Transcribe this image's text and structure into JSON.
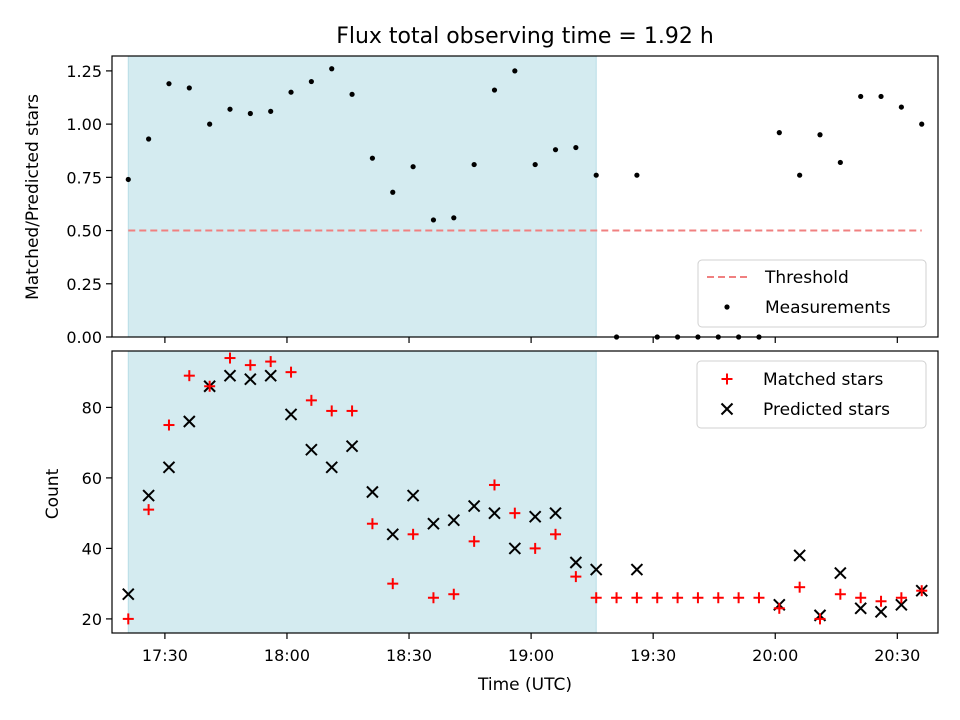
{
  "chart_data": [
    {
      "type": "scatter",
      "title": "Flux total observing time = 1.92 h",
      "ylabel": "Matched/Predicted stars",
      "xlabel": "",
      "xlim": [
        "17:17",
        "20:40"
      ],
      "ylim": [
        0,
        1.32
      ],
      "yticks": [
        "0.00",
        "0.25",
        "0.50",
        "0.75",
        "1.00",
        "1.25"
      ],
      "ytick_values": [
        0,
        0.25,
        0.5,
        0.75,
        1.0,
        1.25
      ],
      "grid": false,
      "legend_position": "lower-right",
      "shaded_interval": [
        "17:21",
        "19:16"
      ],
      "shade_color": "#d4ebf0",
      "threshold": {
        "name": "Threshold",
        "value": 0.5,
        "x_range": [
          "17:21",
          "20:36"
        ],
        "color": "#f08080",
        "style": "dashed"
      },
      "series": [
        {
          "name": "Measurements",
          "marker": "dot",
          "color": "#000000",
          "points": [
            [
              "17:21",
              0.74
            ],
            [
              "17:26",
              0.93
            ],
            [
              "17:31",
              1.19
            ],
            [
              "17:36",
              1.17
            ],
            [
              "17:41",
              1.0
            ],
            [
              "17:46",
              1.07
            ],
            [
              "17:51",
              1.05
            ],
            [
              "17:56",
              1.06
            ],
            [
              "18:01",
              1.15
            ],
            [
              "18:06",
              1.2
            ],
            [
              "18:11",
              1.26
            ],
            [
              "18:16",
              1.14
            ],
            [
              "18:21",
              0.84
            ],
            [
              "18:26",
              0.68
            ],
            [
              "18:31",
              0.8
            ],
            [
              "18:36",
              0.55
            ],
            [
              "18:41",
              0.56
            ],
            [
              "18:46",
              0.81
            ],
            [
              "18:51",
              1.16
            ],
            [
              "18:56",
              1.25
            ],
            [
              "19:01",
              0.81
            ],
            [
              "19:06",
              0.88
            ],
            [
              "19:11",
              0.89
            ],
            [
              "19:16",
              0.76
            ],
            [
              "19:21",
              0.0
            ],
            [
              "19:26",
              0.76
            ],
            [
              "19:31",
              0.0
            ],
            [
              "19:36",
              0.0
            ],
            [
              "19:41",
              0.0
            ],
            [
              "19:46",
              0.0
            ],
            [
              "19:51",
              0.0
            ],
            [
              "19:56",
              0.0
            ],
            [
              "20:01",
              0.96
            ],
            [
              "20:06",
              0.76
            ],
            [
              "20:11",
              0.95
            ],
            [
              "20:16",
              0.82
            ],
            [
              "20:21",
              1.13
            ],
            [
              "20:26",
              1.13
            ],
            [
              "20:31",
              1.08
            ],
            [
              "20:36",
              1.0
            ]
          ]
        }
      ]
    },
    {
      "type": "scatter",
      "title": "",
      "xlabel": "Time (UTC)",
      "ylabel": "Count",
      "xlim": [
        "17:17",
        "20:40"
      ],
      "ylim": [
        16,
        96
      ],
      "xticks": [
        "17:30",
        "18:00",
        "18:30",
        "19:00",
        "19:30",
        "20:00",
        "20:30"
      ],
      "yticks": [
        "20",
        "40",
        "60",
        "80"
      ],
      "ytick_values": [
        20,
        40,
        60,
        80
      ],
      "grid": false,
      "legend_position": "top-right",
      "shaded_interval": [
        "17:21",
        "19:16"
      ],
      "series": [
        {
          "name": "Matched stars",
          "marker": "plus",
          "color": "#ff0000",
          "points": [
            [
              "17:21",
              20
            ],
            [
              "17:26",
              51
            ],
            [
              "17:31",
              75
            ],
            [
              "17:36",
              89
            ],
            [
              "17:41",
              86
            ],
            [
              "17:46",
              94
            ],
            [
              "17:51",
              92
            ],
            [
              "17:56",
              93
            ],
            [
              "18:01",
              90
            ],
            [
              "18:06",
              82
            ],
            [
              "18:11",
              79
            ],
            [
              "18:16",
              79
            ],
            [
              "18:21",
              47
            ],
            [
              "18:26",
              30
            ],
            [
              "18:31",
              44
            ],
            [
              "18:36",
              26
            ],
            [
              "18:41",
              27
            ],
            [
              "18:46",
              42
            ],
            [
              "18:51",
              58
            ],
            [
              "18:56",
              50
            ],
            [
              "19:01",
              40
            ],
            [
              "19:06",
              44
            ],
            [
              "19:11",
              32
            ],
            [
              "19:16",
              26
            ],
            [
              "19:21",
              26
            ],
            [
              "19:26",
              26
            ],
            [
              "19:31",
              26
            ],
            [
              "19:36",
              26
            ],
            [
              "19:41",
              26
            ],
            [
              "19:46",
              26
            ],
            [
              "19:51",
              26
            ],
            [
              "19:56",
              26
            ],
            [
              "20:01",
              23
            ],
            [
              "20:06",
              29
            ],
            [
              "20:11",
              20
            ],
            [
              "20:16",
              27
            ],
            [
              "20:21",
              26
            ],
            [
              "20:26",
              25
            ],
            [
              "20:31",
              26
            ],
            [
              "20:36",
              28
            ]
          ]
        },
        {
          "name": "Predicted stars",
          "marker": "x",
          "color": "#000000",
          "points": [
            [
              "17:21",
              27
            ],
            [
              "17:26",
              55
            ],
            [
              "17:31",
              63
            ],
            [
              "17:36",
              76
            ],
            [
              "17:41",
              86
            ],
            [
              "17:46",
              89
            ],
            [
              "17:51",
              88
            ],
            [
              "17:56",
              89
            ],
            [
              "18:01",
              78
            ],
            [
              "18:06",
              68
            ],
            [
              "18:11",
              63
            ],
            [
              "18:16",
              69
            ],
            [
              "18:21",
              56
            ],
            [
              "18:26",
              44
            ],
            [
              "18:31",
              55
            ],
            [
              "18:36",
              47
            ],
            [
              "18:41",
              48
            ],
            [
              "18:46",
              52
            ],
            [
              "18:51",
              50
            ],
            [
              "18:56",
              40
            ],
            [
              "19:01",
              49
            ],
            [
              "19:06",
              50
            ],
            [
              "19:11",
              36
            ],
            [
              "19:16",
              34
            ],
            [
              "19:26",
              34
            ],
            [
              "20:01",
              24
            ],
            [
              "20:06",
              38
            ],
            [
              "20:11",
              21
            ],
            [
              "20:16",
              33
            ],
            [
              "20:21",
              23
            ],
            [
              "20:26",
              22
            ],
            [
              "20:31",
              24
            ],
            [
              "20:36",
              28
            ]
          ]
        }
      ]
    }
  ]
}
